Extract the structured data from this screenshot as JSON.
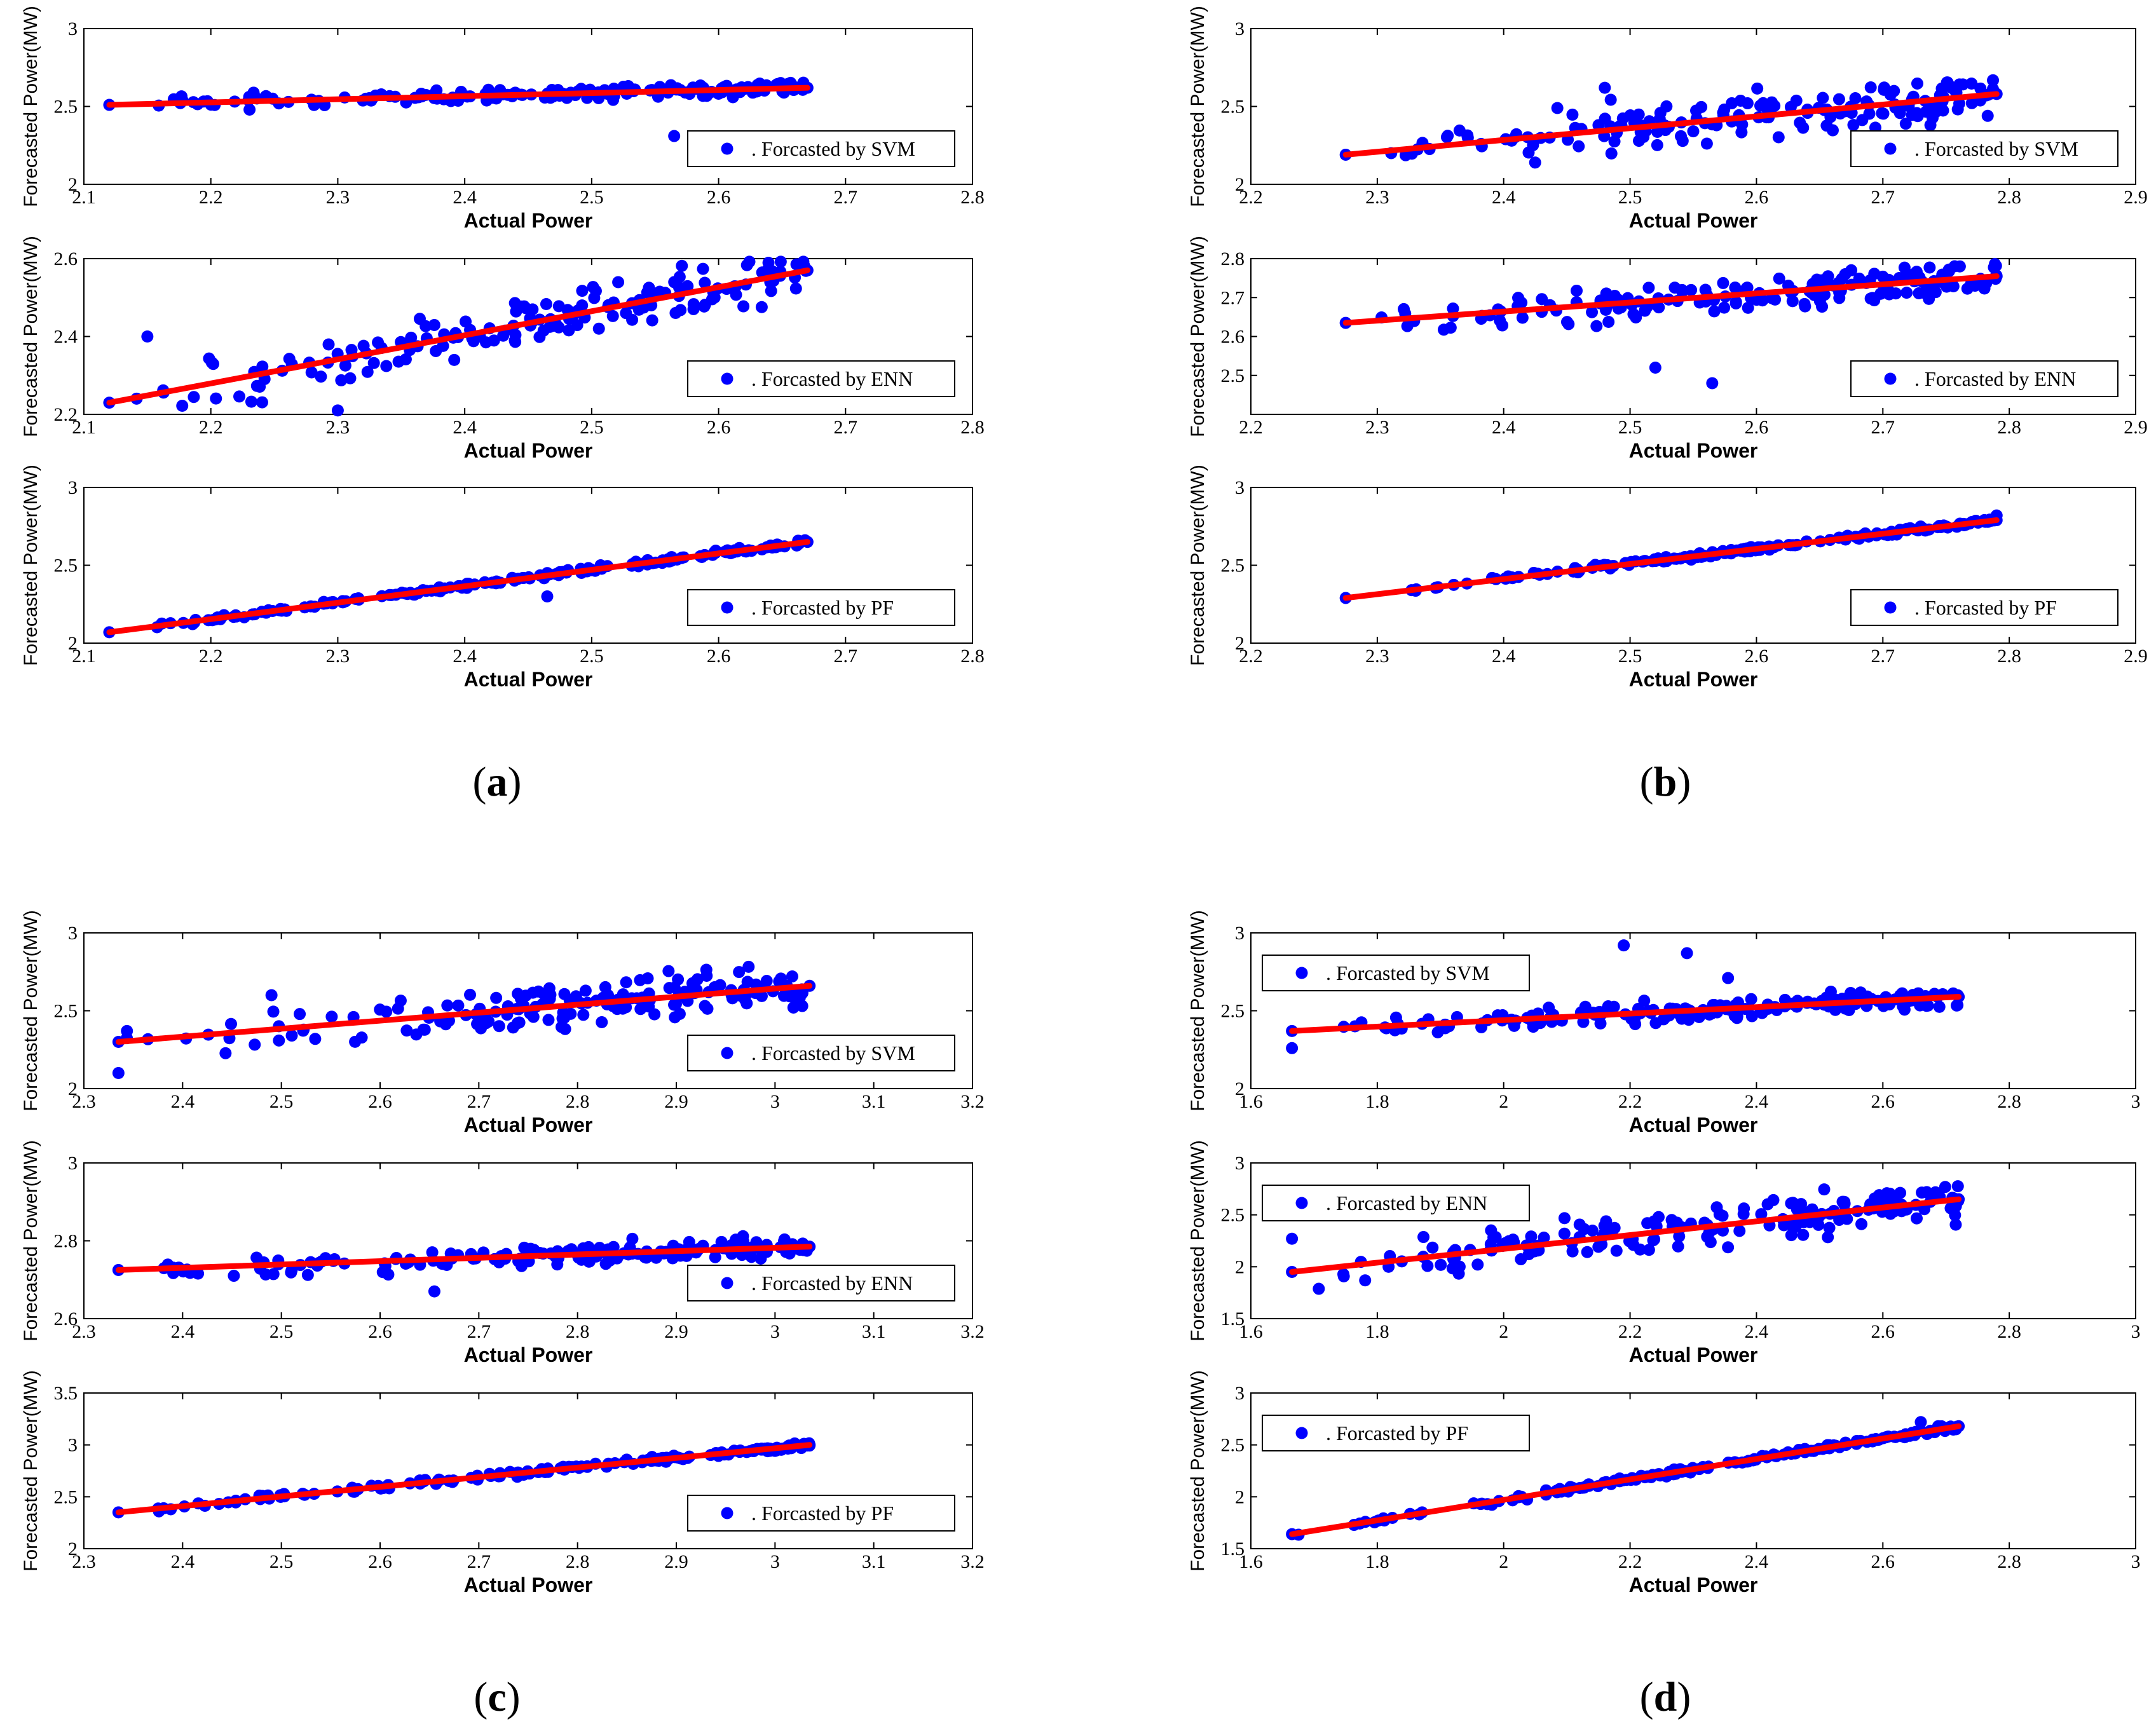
{
  "colors": {
    "points": "#0000ff",
    "fit_line": "#ff0000",
    "axes": "#000000"
  },
  "chart_data": [
    {
      "panel": "a",
      "caption": "(a)",
      "subplots": [
        {
          "type": "scatter",
          "name": "a1",
          "legend": ". Forcasted by SVM",
          "legend_position": "bottom-right",
          "xlabel": "Actual Power",
          "ylabel": "Forecasted Power(MW)",
          "xlim": [
            2.1,
            2.8
          ],
          "ylim": [
            2,
            3
          ],
          "xticks": [
            "2.1",
            "2.2",
            "2.3",
            "2.4",
            "2.5",
            "2.6",
            "2.7",
            "2.8"
          ],
          "yticks": [
            "2",
            "2.5",
            "3"
          ],
          "trend": [
            [
              2.12,
              2.51
            ],
            [
              2.67,
              2.62
            ]
          ],
          "spread": 0.03,
          "seed": 11,
          "extras": [
            [
              2.565,
              2.31
            ]
          ]
        },
        {
          "type": "scatter",
          "name": "a2",
          "legend": ". Forcasted by ENN",
          "legend_position": "bottom-right",
          "xlabel": "Actual Power",
          "ylabel": "Forecasted Power(MW)",
          "xlim": [
            2.1,
            2.8
          ],
          "ylim": [
            2.2,
            2.6
          ],
          "xticks": [
            "2.1",
            "2.2",
            "2.3",
            "2.4",
            "2.5",
            "2.6",
            "2.7",
            "2.8"
          ],
          "yticks": [
            "2.2",
            "2.4",
            "2.6"
          ],
          "trend": [
            [
              2.12,
              2.23
            ],
            [
              2.67,
              2.57
            ]
          ],
          "spread": 0.05,
          "seed": 23,
          "extras": [
            [
              2.15,
              2.4
            ],
            [
              2.3,
              2.21
            ]
          ]
        },
        {
          "type": "scatter",
          "name": "a3",
          "legend": ". Forcasted by PF",
          "legend_position": "bottom-right",
          "xlabel": "Actual Power",
          "ylabel": "Forecasted Power(MW)",
          "xlim": [
            2.1,
            2.8
          ],
          "ylim": [
            2,
            3
          ],
          "xticks": [
            "2.1",
            "2.2",
            "2.3",
            "2.4",
            "2.5",
            "2.6",
            "2.7",
            "2.8"
          ],
          "yticks": [
            "2",
            "2.5",
            "3"
          ],
          "trend": [
            [
              2.12,
              2.07
            ],
            [
              2.67,
              2.65
            ]
          ],
          "spread": 0.012,
          "seed": 37,
          "extras": [
            [
              2.465,
              2.3
            ]
          ]
        }
      ]
    },
    {
      "panel": "b",
      "caption": "(b)",
      "subplots": [
        {
          "type": "scatter",
          "name": "b1",
          "legend": ". Forcasted by SVM",
          "legend_position": "bottom-right",
          "xlabel": "Actual Power",
          "ylabel": "Forecasted Power(MW)",
          "xlim": [
            2.2,
            2.9
          ],
          "ylim": [
            2,
            3
          ],
          "xticks": [
            "2.2",
            "2.3",
            "2.4",
            "2.5",
            "2.6",
            "2.7",
            "2.8",
            "2.9"
          ],
          "yticks": [
            "2",
            "2.5",
            "3"
          ],
          "trend": [
            [
              2.275,
              2.19
            ],
            [
              2.79,
              2.58
            ]
          ],
          "spread": 0.11,
          "seed": 41,
          "extras": [
            [
              2.48,
              2.62
            ]
          ]
        },
        {
          "type": "scatter",
          "name": "b2",
          "legend": ". Forcasted by ENN",
          "legend_position": "bottom-right",
          "xlabel": "Actual Power",
          "ylabel": "Forecasted Power(MW)",
          "xlim": [
            2.2,
            2.9
          ],
          "ylim": [
            2.4,
            2.8
          ],
          "xticks": [
            "2.2",
            "2.3",
            "2.4",
            "2.5",
            "2.6",
            "2.7",
            "2.8",
            "2.9"
          ],
          "yticks": [
            "2.5",
            "2.6",
            "2.7",
            "2.8"
          ],
          "trend": [
            [
              2.275,
              2.635
            ],
            [
              2.79,
              2.755
            ]
          ],
          "spread": 0.035,
          "seed": 53,
          "extras": [
            [
              2.52,
              2.52
            ],
            [
              2.565,
              2.48
            ]
          ]
        },
        {
          "type": "scatter",
          "name": "b3",
          "legend": ". Forcasted by PF",
          "legend_position": "bottom-right",
          "xlabel": "Actual Power",
          "ylabel": "Forecasted Power(MW)",
          "xlim": [
            2.2,
            2.9
          ],
          "ylim": [
            2,
            3
          ],
          "xticks": [
            "2.2",
            "2.3",
            "2.4",
            "2.5",
            "2.6",
            "2.7",
            "2.8",
            "2.9"
          ],
          "yticks": [
            "2",
            "2.5",
            "3"
          ],
          "trend": [
            [
              2.275,
              2.29
            ],
            [
              2.79,
              2.79
            ]
          ],
          "spread": 0.012,
          "seed": 61,
          "extras": [
            [
              2.79,
              2.82
            ]
          ]
        }
      ]
    },
    {
      "panel": "c",
      "caption": "(c)",
      "subplots": [
        {
          "type": "scatter",
          "name": "c1",
          "legend": ". Forcasted by SVM",
          "legend_position": "bottom-right",
          "xlabel": "Actual Power",
          "ylabel": "Forecasted Power(MW)",
          "xlim": [
            2.3,
            3.2
          ],
          "ylim": [
            2,
            3
          ],
          "xticks": [
            "2.3",
            "2.4",
            "2.5",
            "2.6",
            "2.7",
            "2.8",
            "2.9",
            "3",
            "3.1",
            "3.2"
          ],
          "yticks": [
            "2",
            "2.5",
            "3"
          ],
          "trend": [
            [
              2.335,
              2.3
            ],
            [
              3.035,
              2.66
            ]
          ],
          "spread": 0.1,
          "seed": 71,
          "extras": [
            [
              2.335,
              2.1
            ],
            [
              2.49,
              2.6
            ]
          ]
        },
        {
          "type": "scatter",
          "name": "c2",
          "legend": ". Forcasted by ENN",
          "legend_position": "bottom-right",
          "xlabel": "Actual Power",
          "ylabel": "Forecasted Power(MW)",
          "xlim": [
            2.3,
            3.2
          ],
          "ylim": [
            2.6,
            3
          ],
          "xticks": [
            "2.3",
            "2.4",
            "2.5",
            "2.6",
            "2.7",
            "2.8",
            "2.9",
            "3",
            "3.1",
            "3.2"
          ],
          "yticks": [
            "2.6",
            "2.8",
            "3"
          ],
          "trend": [
            [
              2.335,
              2.725
            ],
            [
              3.035,
              2.785
            ]
          ],
          "spread": 0.02,
          "seed": 83,
          "extras": [
            [
              2.655,
              2.67
            ]
          ]
        },
        {
          "type": "scatter",
          "name": "c3",
          "legend": ". Forcasted by PF",
          "legend_position": "bottom-right",
          "xlabel": "Actual Power",
          "ylabel": "Forecasted Power(MW)",
          "xlim": [
            2.3,
            3.2
          ],
          "ylim": [
            2,
            3.5
          ],
          "xticks": [
            "2.3",
            "2.4",
            "2.5",
            "2.6",
            "2.7",
            "2.8",
            "2.9",
            "3",
            "3.1",
            "3.2"
          ],
          "yticks": [
            "2",
            "2.5",
            "3",
            "3.5"
          ],
          "trend": [
            [
              2.335,
              2.35
            ],
            [
              3.035,
              3.0
            ]
          ],
          "spread": 0.02,
          "seed": 97,
          "extras": []
        }
      ]
    },
    {
      "panel": "d",
      "caption": "(d)",
      "subplots": [
        {
          "type": "scatter",
          "name": "d1",
          "legend": ". Forcasted by SVM",
          "legend_position": "top-left",
          "xlabel": "Actual Power",
          "ylabel": "Forecasted Power(MW)",
          "xlim": [
            1.6,
            3
          ],
          "ylim": [
            2,
            3
          ],
          "xticks": [
            "1.6",
            "1.8",
            "2",
            "2.2",
            "2.4",
            "2.6",
            "2.8",
            "3"
          ],
          "yticks": [
            "2",
            "2.5",
            "3"
          ],
          "trend": [
            [
              1.665,
              2.37
            ],
            [
              2.72,
              2.59
            ]
          ],
          "spread": 0.05,
          "seed": 101,
          "extras": [
            [
              2.19,
              2.92
            ],
            [
              2.29,
              2.87
            ],
            [
              1.665,
              2.26
            ],
            [
              2.355,
              2.71
            ]
          ]
        },
        {
          "type": "scatter",
          "name": "d2",
          "legend": ". Forcasted by ENN",
          "legend_position": "top-left",
          "xlabel": "Actual Power",
          "ylabel": "Forecasted Power(MW)",
          "xlim": [
            1.6,
            3
          ],
          "ylim": [
            1.5,
            3
          ],
          "xticks": [
            "1.6",
            "1.8",
            "2",
            "2.2",
            "2.4",
            "2.6",
            "2.8",
            "3"
          ],
          "yticks": [
            "1.5",
            "2",
            "2.5",
            "3"
          ],
          "trend": [
            [
              1.665,
              1.95
            ],
            [
              2.72,
              2.65
            ]
          ],
          "spread": 0.15,
          "seed": 113,
          "extras": [
            [
              1.665,
              2.27
            ],
            [
              1.98,
              2.35
            ]
          ]
        },
        {
          "type": "scatter",
          "name": "d3",
          "legend": ". Forcasted by PF",
          "legend_position": "top-left",
          "xlabel": "Actual Power",
          "ylabel": "Forecasted Power(MW)",
          "xlim": [
            1.6,
            3
          ],
          "ylim": [
            1.5,
            3
          ],
          "xticks": [
            "1.6",
            "1.8",
            "2",
            "2.2",
            "2.4",
            "2.6",
            "2.8",
            "3"
          ],
          "yticks": [
            "1.5",
            "2",
            "2.5",
            "3"
          ],
          "trend": [
            [
              1.665,
              1.64
            ],
            [
              2.72,
              2.68
            ]
          ],
          "spread": 0.02,
          "seed": 127,
          "extras": [
            [
              2.66,
              2.72
            ]
          ]
        }
      ]
    }
  ]
}
